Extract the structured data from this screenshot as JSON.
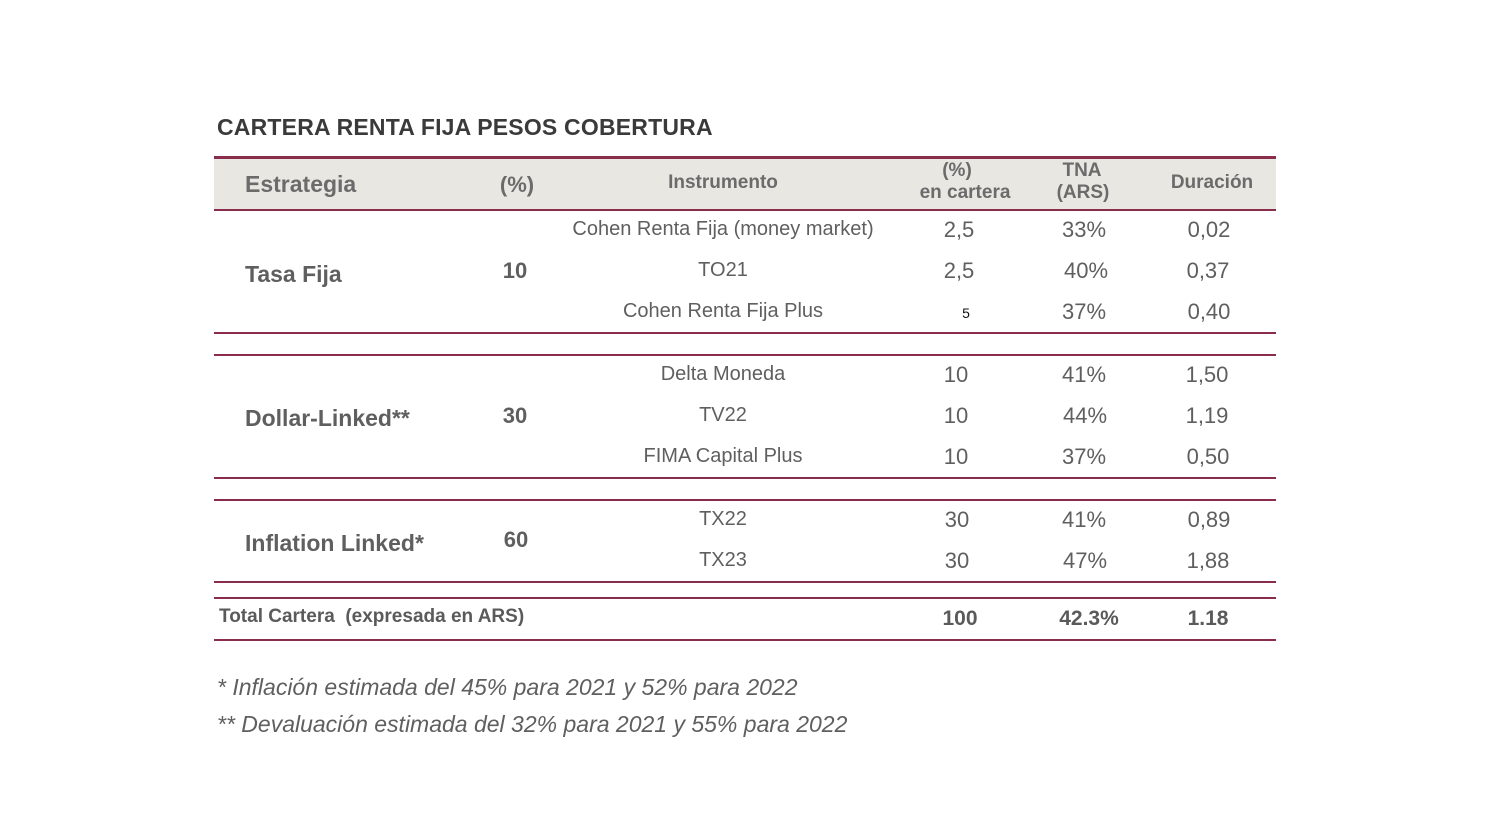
{
  "title": "CARTERA RENTA FIJA PESOS COBERTURA",
  "headers": {
    "strategy": "Estrategia",
    "pct": "(%)",
    "instrument": "Instrumento",
    "pct_cartera_line1": "(%)",
    "pct_cartera_line2": "en cartera",
    "tna_line1": "TNA",
    "tna_line2": "(ARS)",
    "duration": "Duración"
  },
  "groups": [
    {
      "strategy": "Tasa Fija",
      "pct": "10",
      "rows": [
        {
          "instrument": "Cohen Renta Fija (money market)",
          "pct": "2,5",
          "tna": "33%",
          "duration": "0,02"
        },
        {
          "instrument": "TO21",
          "pct": "2,5",
          "tna": "40%",
          "duration": "0,37"
        },
        {
          "instrument": "Cohen Renta Fija Plus",
          "pct": "5",
          "tna": "37%",
          "duration": "0,40"
        }
      ]
    },
    {
      "strategy": "Dollar-Linked**",
      "pct": "30",
      "rows": [
        {
          "instrument": "Delta Moneda",
          "pct": "10",
          "tna": "41%",
          "duration": "1,50"
        },
        {
          "instrument": "TV22",
          "pct": "10",
          "tna": "44%",
          "duration": "1,19"
        },
        {
          "instrument": "FIMA Capital Plus",
          "pct": "10",
          "tna": "37%",
          "duration": "0,50"
        }
      ]
    },
    {
      "strategy": "Inflation Linked*",
      "pct": "60",
      "rows": [
        {
          "instrument": "TX22",
          "pct": "30",
          "tna": "41%",
          "duration": "0,89"
        },
        {
          "instrument": "TX23",
          "pct": "30",
          "tna": "47%",
          "duration": "1,88"
        }
      ]
    }
  ],
  "total": {
    "label": "Total Cartera  (expresada en ARS)",
    "pct": "100",
    "tna": "42.3%",
    "duration": "1.18"
  },
  "notes": [
    "* Inflación estimada del 45% para 2021 y 52% para 2022",
    "** Devaluación estimada del 32% para 2021 y 55% para 2022"
  ],
  "colors": {
    "rule": "#8a2c4c",
    "header_background": "#e8e7e1",
    "text": "#5f5f5f"
  }
}
